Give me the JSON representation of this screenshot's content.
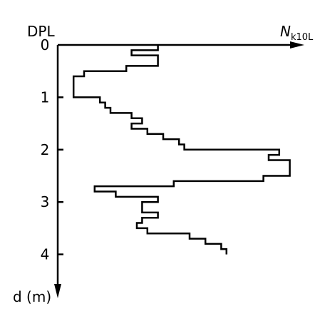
{
  "chart_data": {
    "type": "line",
    "title": "",
    "top_label": "DPL",
    "x_axis_label": {
      "main": "N",
      "subscript": "k10L"
    },
    "y_axis_label": "d (m)",
    "y_ticks": [
      "0",
      "1",
      "2",
      "3",
      "4"
    ],
    "ylim": [
      0,
      4.5
    ],
    "y_inverted": true,
    "x_ticks_shown": false,
    "grid": false,
    "legend": "none",
    "line_color": "#000000",
    "series": [
      {
        "steps": [
          {
            "x": 19,
            "d_top": 0.0,
            "d_bottom": 0.1
          },
          {
            "x": 14,
            "d_top": 0.1,
            "d_bottom": 0.2
          },
          {
            "x": 19,
            "d_top": 0.2,
            "d_bottom": 0.4
          },
          {
            "x": 13,
            "d_top": 0.4,
            "d_bottom": 0.5
          },
          {
            "x": 5,
            "d_top": 0.5,
            "d_bottom": 0.6
          },
          {
            "x": 3,
            "d_top": 0.6,
            "d_bottom": 1.0
          },
          {
            "x": 8,
            "d_top": 1.0,
            "d_bottom": 1.1
          },
          {
            "x": 9,
            "d_top": 1.1,
            "d_bottom": 1.2
          },
          {
            "x": 10,
            "d_top": 1.2,
            "d_bottom": 1.3
          },
          {
            "x": 14,
            "d_top": 1.3,
            "d_bottom": 1.4
          },
          {
            "x": 16,
            "d_top": 1.4,
            "d_bottom": 1.5
          },
          {
            "x": 14,
            "d_top": 1.5,
            "d_bottom": 1.6
          },
          {
            "x": 17,
            "d_top": 1.6,
            "d_bottom": 1.7
          },
          {
            "x": 20,
            "d_top": 1.7,
            "d_bottom": 1.8
          },
          {
            "x": 23,
            "d_top": 1.8,
            "d_bottom": 1.9
          },
          {
            "x": 24,
            "d_top": 1.9,
            "d_bottom": 2.0
          },
          {
            "x": 42,
            "d_top": 2.0,
            "d_bottom": 2.1
          },
          {
            "x": 40,
            "d_top": 2.1,
            "d_bottom": 2.2
          },
          {
            "x": 44,
            "d_top": 2.2,
            "d_bottom": 2.5
          },
          {
            "x": 39,
            "d_top": 2.5,
            "d_bottom": 2.6
          },
          {
            "x": 22,
            "d_top": 2.6,
            "d_bottom": 2.7
          },
          {
            "x": 7,
            "d_top": 2.7,
            "d_bottom": 2.8
          },
          {
            "x": 11,
            "d_top": 2.8,
            "d_bottom": 2.9
          },
          {
            "x": 19,
            "d_top": 2.9,
            "d_bottom": 3.0
          },
          {
            "x": 16,
            "d_top": 3.0,
            "d_bottom": 3.2
          },
          {
            "x": 19,
            "d_top": 3.2,
            "d_bottom": 3.3
          },
          {
            "x": 16,
            "d_top": 3.3,
            "d_bottom": 3.4
          },
          {
            "x": 15,
            "d_top": 3.4,
            "d_bottom": 3.5
          },
          {
            "x": 17,
            "d_top": 3.5,
            "d_bottom": 3.6
          },
          {
            "x": 25,
            "d_top": 3.6,
            "d_bottom": 3.7
          },
          {
            "x": 28,
            "d_top": 3.7,
            "d_bottom": 3.8
          },
          {
            "x": 31,
            "d_top": 3.8,
            "d_bottom": 3.9
          },
          {
            "x": 32,
            "d_top": 3.9,
            "d_bottom": 4.0
          }
        ]
      }
    ]
  }
}
